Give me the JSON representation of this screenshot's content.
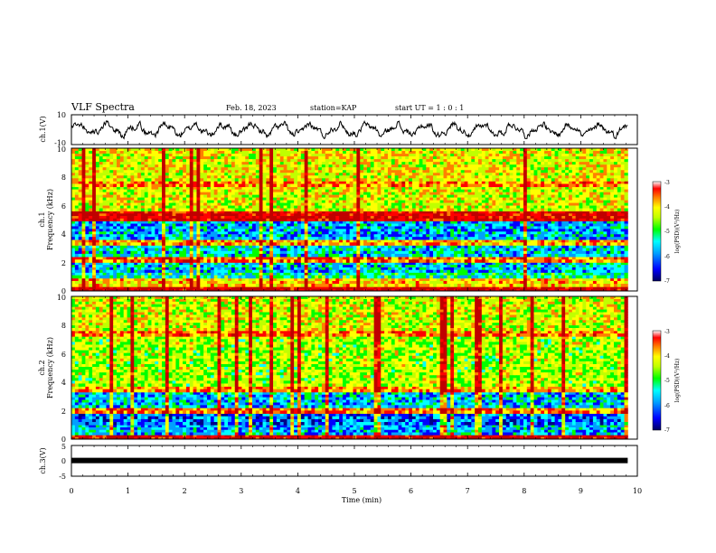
{
  "header": {
    "title": "VLF Spectra",
    "date": "Feb. 18, 2023",
    "station": "station=KAP",
    "start_ut": "start UT =  1 : 0 : 1"
  },
  "colors": {
    "spectral_scale": [
      "#000088",
      "#0000ff",
      "#00a0ff",
      "#00ffff",
      "#00ff00",
      "#c0ff00",
      "#ffff00",
      "#ff8000",
      "#ff0000",
      "#c00000"
    ],
    "waveform": "#000000",
    "ch3_bar": "#000000"
  },
  "chart_data": [
    {
      "id": "ch1_waveform",
      "type": "line",
      "ylabel": "ch.1(V)",
      "ylim": [
        -10,
        10
      ],
      "yticks": [
        "10",
        "-10"
      ],
      "xlim": [
        0,
        10
      ],
      "x_data_range": [
        0,
        9.83
      ],
      "y_range_observed": [
        -6,
        6
      ],
      "description_of_values": "noisy oscillating signal, roughly ±4 V amplitude with ~0.5 min quasi-period"
    },
    {
      "id": "ch1_spectrogram",
      "type": "heatmap",
      "ylabel_line1": "ch.1",
      "ylabel_line2": "Frequency (kHz)",
      "ylim": [
        0,
        10
      ],
      "yticks": [
        "0",
        "2",
        "4",
        "6",
        "8",
        "10"
      ],
      "xlim": [
        0,
        10
      ],
      "x_data_range": [
        0,
        9.83
      ],
      "colorbar": {
        "range": [
          -7,
          -3
        ],
        "ticks": [
          "-3",
          "-4",
          "-5",
          "-6",
          "-7"
        ],
        "label": "log(PSD)(V²/Hz)"
      },
      "bands": [
        {
          "f_range": [
            0.0,
            0.3
          ],
          "level": -3.2
        },
        {
          "f_range": [
            0.3,
            0.9
          ],
          "level": -4.3
        },
        {
          "f_range": [
            0.9,
            1.3
          ],
          "level": -5.5
        },
        {
          "f_range": [
            1.3,
            2.0
          ],
          "level": -5.8
        },
        {
          "f_range": [
            2.0,
            2.4
          ],
          "level": -3.9
        },
        {
          "f_range": [
            2.4,
            3.2
          ],
          "level": -5.7
        },
        {
          "f_range": [
            3.2,
            3.6
          ],
          "level": -4.2
        },
        {
          "f_range": [
            3.6,
            4.9
          ],
          "level": -5.9
        },
        {
          "f_range": [
            4.9,
            5.6
          ],
          "level": -3.3
        },
        {
          "f_range": [
            5.6,
            7.3
          ],
          "level": -4.6
        },
        {
          "f_range": [
            7.3,
            7.7
          ],
          "level": -4.0
        },
        {
          "f_range": [
            7.7,
            10.0
          ],
          "level": -4.5
        }
      ]
    },
    {
      "id": "ch2_spectrogram",
      "type": "heatmap",
      "ylabel_line1": "ch.2",
      "ylabel_line2": "Frequency (kHz)",
      "ylim": [
        0,
        10
      ],
      "yticks": [
        "0",
        "2",
        "4",
        "6",
        "8",
        "10"
      ],
      "xlim": [
        0,
        10
      ],
      "x_data_range": [
        0,
        9.83
      ],
      "colorbar": {
        "range": [
          -7,
          -3
        ],
        "ticks": [
          "-3",
          "-4",
          "-5",
          "-6",
          "-7"
        ],
        "label": "log(PSD)(V²/Hz)"
      },
      "bands": [
        {
          "f_range": [
            0.0,
            0.3
          ],
          "level": -3.3
        },
        {
          "f_range": [
            0.3,
            1.0
          ],
          "level": -5.9
        },
        {
          "f_range": [
            1.0,
            1.8
          ],
          "level": -6.2
        },
        {
          "f_range": [
            1.8,
            2.2
          ],
          "level": -4.0
        },
        {
          "f_range": [
            2.2,
            3.3
          ],
          "level": -5.8
        },
        {
          "f_range": [
            3.3,
            3.7
          ],
          "level": -4.1
        },
        {
          "f_range": [
            3.7,
            7.2
          ],
          "level": -4.8
        },
        {
          "f_range": [
            7.2,
            7.6
          ],
          "level": -4.0
        },
        {
          "f_range": [
            7.6,
            10.0
          ],
          "level": -4.6
        }
      ]
    },
    {
      "id": "ch3_waveform",
      "type": "line",
      "ylabel": "ch.3(V)",
      "ylim": [
        -5,
        5
      ],
      "yticks": [
        "5",
        "0",
        "-5"
      ],
      "xlim": [
        0,
        10
      ],
      "x_data_range": [
        0,
        9.83
      ],
      "y_constant": 0.1
    }
  ],
  "xaxis": {
    "label": "Time (min)",
    "ticks": [
      "0",
      "1",
      "2",
      "3",
      "4",
      "5",
      "6",
      "7",
      "8",
      "9",
      "10"
    ]
  }
}
